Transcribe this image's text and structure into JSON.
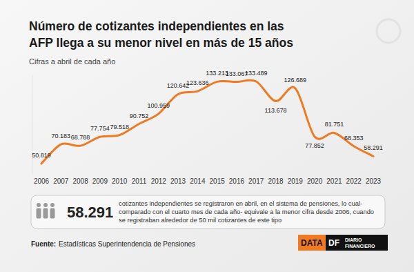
{
  "chart_data": {
    "type": "line",
    "title": [
      "Número de cotizantes independientes en las",
      "AFP llega a su menor nivel en más de 15 años"
    ],
    "subtitle": "Cifras a abril de cada año",
    "categories": [
      "2006",
      "2007",
      "2008",
      "2009",
      "2010",
      "2011",
      "2012",
      "2013",
      "2014",
      "2015",
      "2016",
      "2017",
      "2018",
      "2019",
      "2020",
      "2021",
      "2022",
      "2023"
    ],
    "values": [
      50819,
      70183,
      68788,
      77754,
      79518,
      90752,
      100959,
      120642,
      123636,
      133213,
      133067,
      133489,
      113678,
      126689,
      77852,
      81751,
      68353,
      58291
    ],
    "value_labels": [
      "50.819",
      "70.183",
      "68.788",
      "77.754",
      "79.518",
      "90.752",
      "100.959",
      "120.642",
      "123.636",
      "133.213",
      "133.067",
      "133.489",
      "113.678",
      "126.689",
      "77.852",
      "81.751",
      "68.353",
      "58.291"
    ],
    "data_labels": true,
    "color": "#f07a22",
    "ylim": [
      40000,
      140000
    ],
    "yticks": [],
    "tick_labels": "x",
    "grid": false,
    "annotations": [
      {
        "label": "58.291",
        "text": [
          "cotizantes independientes se registraron en abril, en el sistema de pensiones, lo cual-",
          "comparado con el cuarto mes de cada año- equivale a la menor cifra desde 2006, cuando",
          "se registraban alrededor de 50 mil cotizantes de este tipo"
        ]
      }
    ],
    "source": {
      "label": "Fuente:",
      "text": "Estadísticas Superintendencia de Pensiones"
    },
    "brand": [
      "DATA",
      "DF",
      "DIARIO",
      "FINANCIERO"
    ]
  }
}
